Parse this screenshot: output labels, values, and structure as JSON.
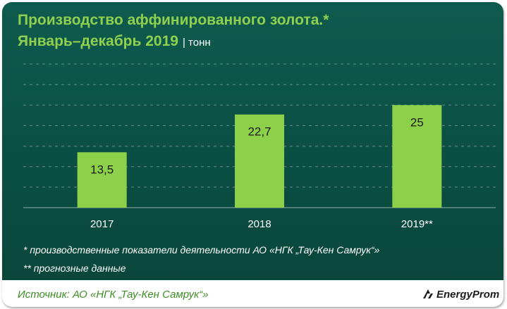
{
  "header": {
    "title_line1": "Производство аффинированного золота.*",
    "title_line2": "Январь–декабрь 2019",
    "units": "| тонн"
  },
  "chart_data": {
    "type": "bar",
    "categories": [
      "2017",
      "2018",
      "2019**"
    ],
    "values": [
      13.5,
      22.7,
      25
    ],
    "value_labels": [
      "13,5",
      "22,7",
      "25"
    ],
    "title": "Производство аффинированного золота.* Январь–декабрь 2019",
    "xlabel": "",
    "ylabel": "тонн",
    "ylim": [
      0,
      35
    ],
    "grid": true,
    "bar_color": "#8dd14a"
  },
  "notes": {
    "note1": "* производственные показатели деятельности АО «НГК „Тау-Кен Самрук“»",
    "note2": "** прогнозные данные"
  },
  "footer": {
    "source": "Источник: АО «НГК „Тау-Кен Самрук“»",
    "logo_text": "EnergyProm",
    "logo_icon": "energyprom-logo-icon"
  },
  "colors": {
    "panel": "#0b4e43",
    "accent": "#8fd14f",
    "source_text": "#3d8f22"
  }
}
